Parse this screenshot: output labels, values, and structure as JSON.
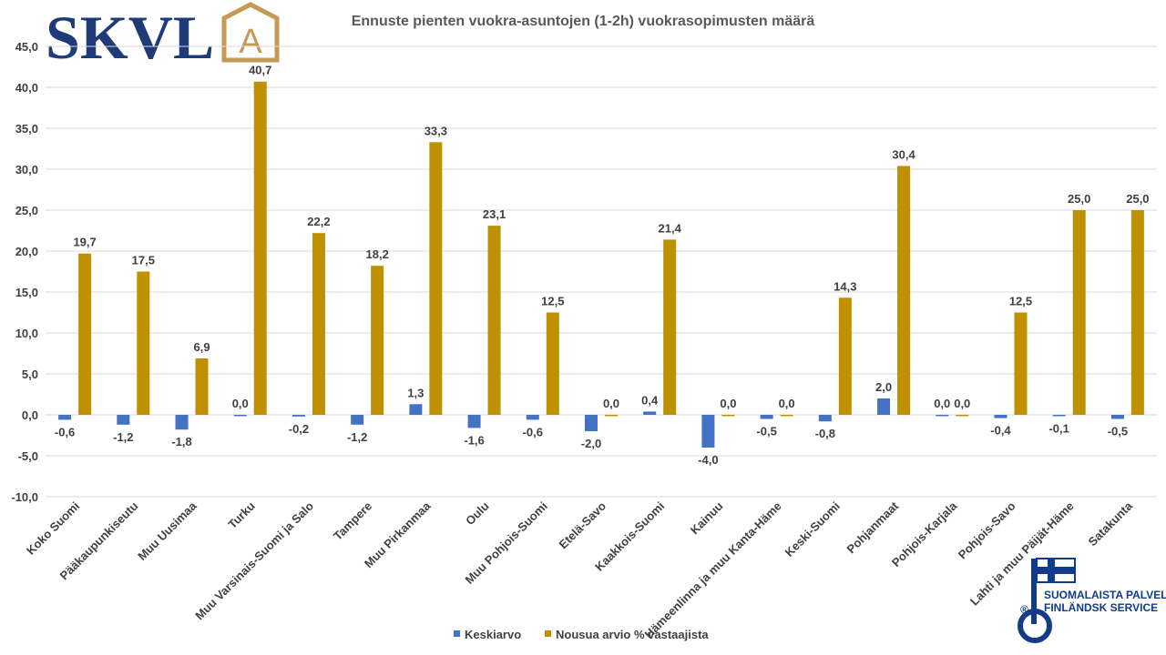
{
  "logo": {
    "text": "SKVL",
    "badge_letter": "A",
    "colors": {
      "text": "#1f3a78",
      "badge": "#c59a55"
    }
  },
  "key_flag_logo": {
    "line1": "SUOMALAISTA PALVELUA",
    "line2": "FINLÄNDSK SERVICE",
    "registered": "®",
    "icon": "key-flag-icon",
    "color": "#123b8a"
  },
  "chart_data": {
    "type": "bar",
    "title": "Ennuste pienten vuokra-asuntojen (1-2h) vuokrasopimusten määrä",
    "xlabel": "",
    "ylabel": "",
    "ylim": [
      -10,
      45
    ],
    "y_ticks": [
      "45,0",
      "40,0",
      "35,0",
      "30,0",
      "25,0",
      "20,0",
      "15,0",
      "10,0",
      "5,0",
      "0,0",
      "-5,0",
      "-10,0"
    ],
    "grid": true,
    "legend_position": "bottom",
    "categories": [
      "Koko Suomi",
      "Pääkaupunkiseutu",
      "Muu Uusimaa",
      "Turku",
      "Muu Varsinais-Suomi ja Salo",
      "Tampere",
      "Muu Pirkanmaa",
      "Oulu",
      "Muu Pohjois-Suomi",
      "Etelä-Savo",
      "Kaakkois-Suomi",
      "Kainuu",
      "Hämeenlinna ja muu Kanta-Häme",
      "Keski-Suomi",
      "Pohjanmaat",
      "Pohjois-Karjala",
      "Pohjois-Savo",
      "Lahti ja muu Päijät-Häme",
      "Satakunta"
    ],
    "series": [
      {
        "name": "Keskiarvo",
        "color": "#4472c4",
        "values": [
          -0.6,
          -1.2,
          -1.8,
          0.0,
          -0.2,
          -1.2,
          1.3,
          -1.6,
          -0.6,
          -2.0,
          0.4,
          -4.0,
          -0.5,
          -0.8,
          2.0,
          0.0,
          -0.4,
          -0.1,
          -0.5
        ],
        "labels": [
          "-0,6",
          "-1,2",
          "-1,8",
          "0,0",
          "-0,2",
          "-1,2",
          "1,3",
          "-1,6",
          "-0,6",
          "-2,0",
          "0,4",
          "-4,0",
          "-0,5",
          "-0,8",
          "2,0",
          "0,0",
          "-0,4",
          "-0,1",
          "-0,5"
        ]
      },
      {
        "name": "Nousua arvio % vastaajista",
        "color": "#bf9000",
        "values": [
          19.7,
          17.5,
          6.9,
          40.7,
          22.2,
          18.2,
          33.3,
          23.1,
          12.5,
          0.0,
          21.4,
          0.0,
          0.0,
          14.3,
          30.4,
          0.0,
          12.5,
          25.0,
          25.0
        ],
        "labels": [
          "19,7",
          "17,5",
          "6,9",
          "40,7",
          "22,2",
          "18,2",
          "33,3",
          "23,1",
          "12,5",
          "0,0",
          "21,4",
          "0,0",
          "0,0",
          "14,3",
          "30,4",
          "0,0",
          "12,5",
          "25,0",
          "25,0"
        ]
      }
    ]
  }
}
